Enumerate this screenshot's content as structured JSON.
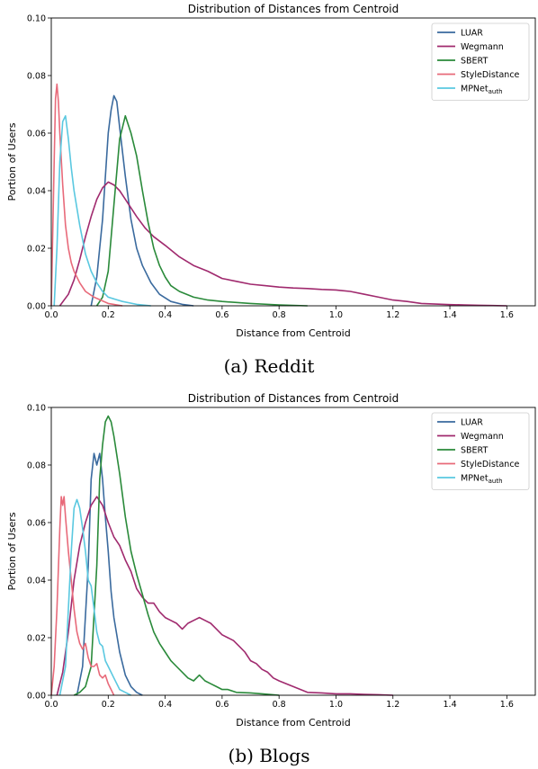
{
  "captions": [
    "(a) Reddit",
    "(b) Blogs"
  ],
  "chart_data": [
    {
      "type": "line",
      "title": "Distribution of Distances from Centroid",
      "xlabel": "Distance from Centroid",
      "ylabel": "Portion of Users",
      "xlim": [
        0,
        1.7
      ],
      "ylim": [
        0,
        0.1
      ],
      "xticks": [
        0,
        0.2,
        0.4,
        0.6,
        0.8,
        1.0,
        1.2,
        1.4,
        1.6
      ],
      "xtick_labels": [
        "0.0",
        "0.2",
        "0.4",
        "0.6",
        "0.8",
        "1.0",
        "1.2",
        "1.4",
        "1.6"
      ],
      "yticks": [
        0,
        0.02,
        0.04,
        0.06,
        0.08,
        0.1
      ],
      "ytick_labels": [
        "0.00",
        "0.02",
        "0.04",
        "0.06",
        "0.08",
        "0.10"
      ],
      "grid": false,
      "legend": "top-right",
      "series": [
        {
          "name": "LUAR",
          "color": "#3a6a9e",
          "x": [
            0.14,
            0.16,
            0.18,
            0.2,
            0.21,
            0.22,
            0.23,
            0.24,
            0.26,
            0.28,
            0.3,
            0.32,
            0.35,
            0.38,
            0.42,
            0.46,
            0.5
          ],
          "y": [
            0,
            0.01,
            0.03,
            0.06,
            0.068,
            0.073,
            0.071,
            0.062,
            0.045,
            0.03,
            0.02,
            0.014,
            0.008,
            0.004,
            0.0015,
            0.0005,
            0
          ]
        },
        {
          "name": "Wegmann",
          "color": "#a02a6e",
          "x": [
            0.03,
            0.06,
            0.08,
            0.1,
            0.12,
            0.14,
            0.16,
            0.18,
            0.2,
            0.22,
            0.24,
            0.26,
            0.28,
            0.3,
            0.33,
            0.36,
            0.4,
            0.45,
            0.5,
            0.55,
            0.6,
            0.65,
            0.7,
            0.75,
            0.8,
            0.85,
            0.9,
            0.95,
            1.0,
            1.05,
            1.1,
            1.15,
            1.2,
            1.25,
            1.3,
            1.35,
            1.4,
            1.45,
            1.5,
            1.55,
            1.6
          ],
          "y": [
            0,
            0.004,
            0.009,
            0.016,
            0.024,
            0.031,
            0.037,
            0.041,
            0.043,
            0.042,
            0.04,
            0.037,
            0.034,
            0.031,
            0.027,
            0.024,
            0.021,
            0.017,
            0.014,
            0.012,
            0.0095,
            0.0085,
            0.0075,
            0.007,
            0.0065,
            0.0062,
            0.006,
            0.0057,
            0.0055,
            0.005,
            0.004,
            0.003,
            0.002,
            0.0015,
            0.0008,
            0.0006,
            0.0004,
            0.0003,
            0.0002,
            0.0001,
            0
          ]
        },
        {
          "name": "SBERT",
          "color": "#2a8a3a",
          "x": [
            0.16,
            0.18,
            0.2,
            0.22,
            0.24,
            0.26,
            0.28,
            0.3,
            0.32,
            0.34,
            0.36,
            0.38,
            0.4,
            0.42,
            0.45,
            0.5,
            0.55,
            0.6,
            0.7,
            0.8,
            0.9
          ],
          "y": [
            0,
            0.003,
            0.012,
            0.035,
            0.058,
            0.066,
            0.06,
            0.052,
            0.04,
            0.029,
            0.02,
            0.014,
            0.01,
            0.007,
            0.005,
            0.003,
            0.002,
            0.0015,
            0.0008,
            0.0003,
            0
          ]
        },
        {
          "name": "StyleDistance",
          "color": "#e86a7a",
          "x": [
            0,
            0.01,
            0.015,
            0.02,
            0.025,
            0.03,
            0.04,
            0.05,
            0.06,
            0.07,
            0.08,
            0.1,
            0.12,
            0.15,
            0.2,
            0.25
          ],
          "y": [
            0,
            0.05,
            0.072,
            0.077,
            0.071,
            0.06,
            0.042,
            0.028,
            0.02,
            0.015,
            0.012,
            0.008,
            0.005,
            0.003,
            0.0008,
            0
          ]
        },
        {
          "name": "MPNet_auth",
          "color": "#5ac8e0",
          "x": [
            0.01,
            0.02,
            0.03,
            0.04,
            0.05,
            0.06,
            0.07,
            0.08,
            0.1,
            0.12,
            0.14,
            0.16,
            0.18,
            0.2,
            0.25,
            0.3,
            0.35
          ],
          "y": [
            0,
            0.02,
            0.05,
            0.064,
            0.066,
            0.058,
            0.048,
            0.04,
            0.028,
            0.018,
            0.012,
            0.008,
            0.005,
            0.003,
            0.0015,
            0.0005,
            0
          ]
        }
      ]
    },
    {
      "type": "line",
      "title": "Distribution of Distances from Centroid",
      "xlabel": "Distance from Centroid",
      "ylabel": "Portion of Users",
      "xlim": [
        0,
        1.7
      ],
      "ylim": [
        0,
        0.1
      ],
      "xticks": [
        0,
        0.2,
        0.4,
        0.6,
        0.8,
        1.0,
        1.2,
        1.4,
        1.6
      ],
      "xtick_labels": [
        "0.0",
        "0.2",
        "0.4",
        "0.6",
        "0.8",
        "1.0",
        "1.2",
        "1.4",
        "1.6"
      ],
      "yticks": [
        0,
        0.02,
        0.04,
        0.06,
        0.08,
        0.1
      ],
      "ytick_labels": [
        "0.00",
        "0.02",
        "0.04",
        "0.06",
        "0.08",
        "0.10"
      ],
      "grid": false,
      "legend": "top-right",
      "series": [
        {
          "name": "LUAR",
          "color": "#3a6a9e",
          "x": [
            0.09,
            0.11,
            0.13,
            0.14,
            0.15,
            0.16,
            0.17,
            0.18,
            0.19,
            0.2,
            0.21,
            0.22,
            0.24,
            0.26,
            0.28,
            0.3,
            0.32
          ],
          "y": [
            0,
            0.01,
            0.045,
            0.075,
            0.084,
            0.08,
            0.084,
            0.075,
            0.062,
            0.05,
            0.036,
            0.027,
            0.015,
            0.007,
            0.003,
            0.001,
            0
          ]
        },
        {
          "name": "Wegmann",
          "color": "#a02a6e",
          "x": [
            0.02,
            0.04,
            0.06,
            0.08,
            0.1,
            0.12,
            0.14,
            0.16,
            0.18,
            0.2,
            0.22,
            0.24,
            0.26,
            0.28,
            0.3,
            0.32,
            0.34,
            0.36,
            0.38,
            0.4,
            0.42,
            0.44,
            0.46,
            0.48,
            0.5,
            0.52,
            0.54,
            0.56,
            0.58,
            0.6,
            0.62,
            0.64,
            0.66,
            0.68,
            0.7,
            0.72,
            0.74,
            0.76,
            0.78,
            0.8,
            0.85,
            0.9,
            0.95,
            1.0,
            1.05,
            1.1,
            1.15,
            1.2
          ],
          "y": [
            0,
            0.008,
            0.022,
            0.04,
            0.052,
            0.06,
            0.066,
            0.069,
            0.066,
            0.06,
            0.055,
            0.052,
            0.047,
            0.043,
            0.037,
            0.034,
            0.032,
            0.032,
            0.029,
            0.027,
            0.026,
            0.025,
            0.023,
            0.025,
            0.026,
            0.027,
            0.026,
            0.025,
            0.023,
            0.021,
            0.02,
            0.019,
            0.017,
            0.015,
            0.012,
            0.011,
            0.009,
            0.008,
            0.006,
            0.005,
            0.003,
            0.001,
            0.0008,
            0.0005,
            0.0005,
            0.0003,
            0.0002,
            0
          ]
        },
        {
          "name": "SBERT",
          "color": "#2a8a3a",
          "x": [
            0.08,
            0.1,
            0.12,
            0.14,
            0.16,
            0.17,
            0.18,
            0.19,
            0.2,
            0.21,
            0.22,
            0.24,
            0.26,
            0.28,
            0.3,
            0.32,
            0.34,
            0.36,
            0.38,
            0.4,
            0.42,
            0.44,
            0.46,
            0.48,
            0.5,
            0.52,
            0.54,
            0.56,
            0.58,
            0.6,
            0.62,
            0.65,
            0.7,
            0.75,
            0.8
          ],
          "y": [
            0,
            0.001,
            0.003,
            0.01,
            0.045,
            0.075,
            0.087,
            0.095,
            0.097,
            0.095,
            0.09,
            0.077,
            0.062,
            0.05,
            0.042,
            0.035,
            0.028,
            0.022,
            0.018,
            0.015,
            0.012,
            0.01,
            0.008,
            0.006,
            0.005,
            0.007,
            0.005,
            0.004,
            0.003,
            0.002,
            0.002,
            0.001,
            0.0008,
            0.0004,
            0
          ]
        },
        {
          "name": "StyleDistance",
          "color": "#e86a7a",
          "x": [
            0,
            0.01,
            0.02,
            0.03,
            0.035,
            0.04,
            0.045,
            0.05,
            0.06,
            0.07,
            0.08,
            0.09,
            0.1,
            0.11,
            0.12,
            0.13,
            0.14,
            0.15,
            0.16,
            0.17,
            0.18,
            0.19,
            0.2,
            0.22
          ],
          "y": [
            0,
            0.01,
            0.03,
            0.058,
            0.069,
            0.066,
            0.069,
            0.062,
            0.05,
            0.04,
            0.03,
            0.022,
            0.018,
            0.016,
            0.018,
            0.013,
            0.01,
            0.01,
            0.011,
            0.007,
            0.006,
            0.007,
            0.004,
            0
          ]
        },
        {
          "name": "MPNet_auth",
          "color": "#5ac8e0",
          "x": [
            0.03,
            0.05,
            0.06,
            0.07,
            0.08,
            0.09,
            0.1,
            0.11,
            0.12,
            0.13,
            0.14,
            0.15,
            0.16,
            0.17,
            0.18,
            0.19,
            0.2,
            0.22,
            0.24,
            0.26,
            0.28
          ],
          "y": [
            0,
            0.01,
            0.03,
            0.05,
            0.065,
            0.068,
            0.065,
            0.058,
            0.05,
            0.04,
            0.038,
            0.03,
            0.022,
            0.018,
            0.017,
            0.012,
            0.01,
            0.006,
            0.002,
            0.001,
            0
          ]
        }
      ]
    }
  ]
}
